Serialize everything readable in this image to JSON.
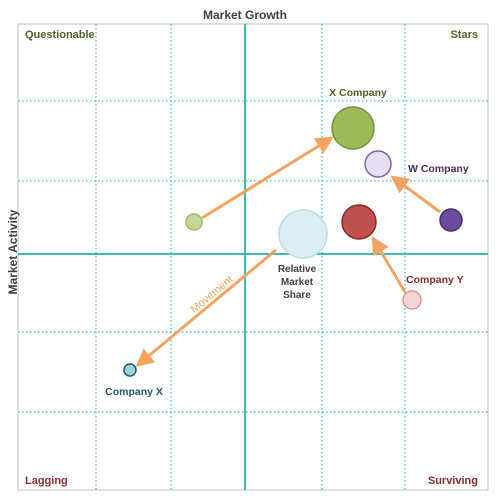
{
  "diagram": {
    "axes": {
      "x_title": "Market Growth",
      "y_title": "Market Activity"
    },
    "quadrants": {
      "top_left": {
        "label": "Questionable",
        "color": "#4f6228"
      },
      "top_right": {
        "label": "Stars",
        "color": "#4f6228"
      },
      "bottom_left": {
        "label": "Lagging",
        "color": "#8b2a2a"
      },
      "bottom_right": {
        "label": "Surviving",
        "color": "#8b2a2a"
      }
    },
    "companies": {
      "x_company": {
        "label": "X Company",
        "color": "#4f6228"
      },
      "w_company": {
        "label": "W Company",
        "color": "#4b2d5f"
      },
      "company_y": {
        "label": "Company Y",
        "color": "#8b2a2a"
      },
      "company_x": {
        "label": "Company X",
        "color": "#215968"
      }
    },
    "legend": {
      "line1": "Relative",
      "line2": "Market",
      "line3": "Share"
    },
    "movement_label": "Movement",
    "colors": {
      "grid_major": "#22b0b0",
      "grid_minor": "#3bbcbc",
      "arrow": "#f4a460",
      "x_company_bubble": "#9bbb59",
      "x_company_bubble_from": "#c4d79b",
      "w_company_bubble": "#6a4c9c",
      "w_company_bubble_to": "#e6dff0",
      "company_y_bubble": "#c0504d",
      "company_y_bubble_from": "#f2d6d5",
      "company_x_bubble": "#9fd3e0",
      "legend_bubble": "#daeef3"
    }
  }
}
